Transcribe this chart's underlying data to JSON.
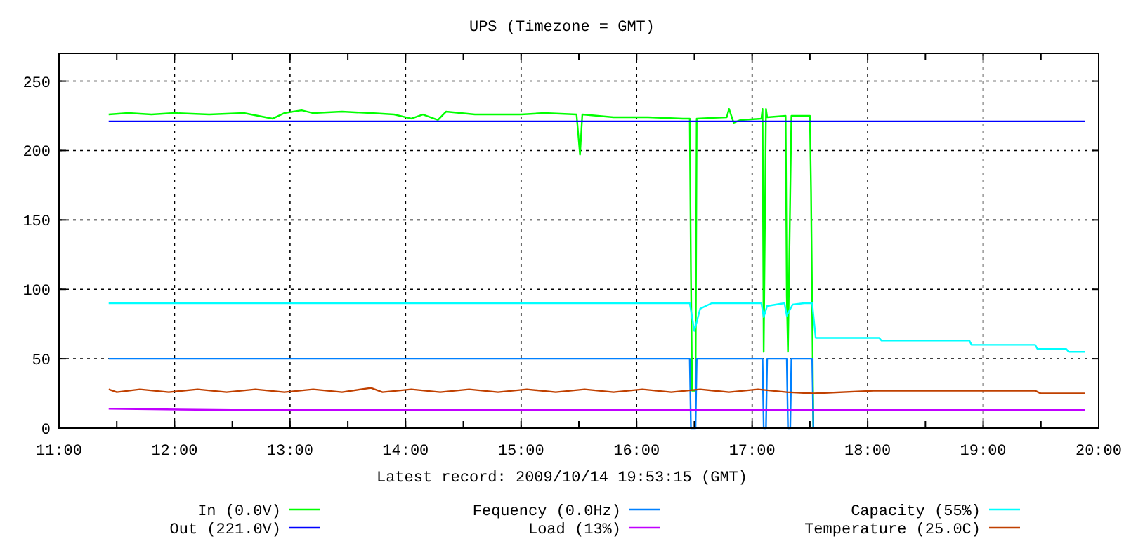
{
  "chart_data": {
    "type": "line",
    "title": "UPS (Timezone = GMT)",
    "annotations": [
      "Latest record: 2009/10/14 19:53:15 (GMT)"
    ],
    "xlim": [
      11,
      20
    ],
    "xticks": [
      {
        "value": 11,
        "label": "11:00"
      },
      {
        "value": 11.5,
        "label": null
      },
      {
        "value": 12,
        "label": "12:00"
      },
      {
        "value": 12.5,
        "label": null
      },
      {
        "value": 13,
        "label": "13:00"
      },
      {
        "value": 13.5,
        "label": null
      },
      {
        "value": 14,
        "label": "14:00"
      },
      {
        "value": 14.5,
        "label": null
      },
      {
        "value": 15,
        "label": "15:00"
      },
      {
        "value": 15.5,
        "label": null
      },
      {
        "value": 16,
        "label": "16:00"
      },
      {
        "value": 16.5,
        "label": null
      },
      {
        "value": 17,
        "label": "17:00"
      },
      {
        "value": 17.5,
        "label": null
      },
      {
        "value": 18,
        "label": "18:00"
      },
      {
        "value": 18.5,
        "label": null
      },
      {
        "value": 19,
        "label": "19:00"
      },
      {
        "value": 19.5,
        "label": null
      },
      {
        "value": 20,
        "label": "20:00"
      }
    ],
    "ylim": [
      0,
      270
    ],
    "yticks": [
      0,
      50,
      100,
      150,
      200,
      250
    ],
    "grid": true,
    "legend": "bottom",
    "marker": "none",
    "line_style": "solid",
    "series": [
      {
        "name": "In (0.0V)",
        "color": "#00ff00",
        "x": [
          11.43,
          11.6,
          11.8,
          12.0,
          12.3,
          12.6,
          12.85,
          12.95,
          13.1,
          13.2,
          13.45,
          13.7,
          13.9,
          14.05,
          14.15,
          14.28,
          14.35,
          14.6,
          15.0,
          15.2,
          15.48,
          15.51,
          15.53,
          15.8,
          16.1,
          16.4,
          16.46,
          16.47,
          16.48,
          16.51,
          16.52,
          16.78,
          16.8,
          16.84,
          16.9,
          17.08,
          17.09,
          17.1,
          17.12,
          17.13,
          17.29,
          17.3,
          17.31,
          17.33,
          17.34,
          17.5,
          17.51,
          17.53
        ],
        "values": [
          226,
          227,
          226,
          227,
          226,
          227,
          223,
          227,
          229,
          227,
          228,
          227,
          226,
          223,
          226,
          222,
          228,
          226,
          226,
          227,
          226,
          197,
          226,
          224,
          224,
          223,
          223,
          113,
          27,
          27,
          223,
          224,
          230,
          220,
          222,
          223,
          230,
          55,
          230,
          224,
          225,
          95,
          55,
          170,
          225,
          225,
          170,
          0
        ]
      },
      {
        "name": "Out (221.0V)",
        "color": "#0000ff",
        "x": [
          11.43,
          19.88
        ],
        "values": [
          221,
          221
        ]
      },
      {
        "name": "Fequency (0.0Hz)",
        "color": "#0080ff",
        "x": [
          11.43,
          16.46,
          16.47,
          16.51,
          16.52,
          17.09,
          17.1,
          17.12,
          17.13,
          17.3,
          17.31,
          17.33,
          17.34,
          17.52,
          17.53
        ],
        "values": [
          50,
          50,
          0,
          0,
          50,
          50,
          0,
          0,
          50,
          50,
          0,
          0,
          50,
          50,
          0
        ]
      },
      {
        "name": "Load (13%)",
        "color": "#c000ff",
        "x": [
          11.43,
          12.5,
          15,
          17.53,
          19.88
        ],
        "values": [
          14,
          13,
          13,
          13,
          13
        ]
      },
      {
        "name": "Capacity (55%)",
        "color": "#00ffff",
        "x": [
          11.43,
          16.46,
          16.47,
          16.5,
          16.55,
          16.65,
          17.08,
          17.1,
          17.13,
          17.28,
          17.3,
          17.35,
          17.45,
          17.52,
          17.55,
          18.1,
          18.12,
          18.88,
          18.9,
          19.45,
          19.47,
          19.72,
          19.74,
          19.88
        ],
        "values": [
          90,
          90,
          85,
          70,
          86,
          90,
          90,
          80,
          88,
          90,
          81,
          89,
          90,
          90,
          65,
          65,
          63,
          63,
          60,
          60,
          57,
          57,
          55,
          55
        ]
      },
      {
        "name": "Temperature (25.0C)",
        "color": "#c04000",
        "x": [
          11.43,
          11.5,
          11.7,
          11.95,
          12.2,
          12.45,
          12.7,
          12.95,
          13.2,
          13.45,
          13.7,
          13.8,
          14.05,
          14.3,
          14.55,
          14.8,
          15.05,
          15.3,
          15.55,
          15.8,
          16.05,
          16.3,
          16.55,
          16.8,
          17.05,
          17.3,
          17.53,
          18.05,
          19.45,
          19.5,
          19.88
        ],
        "values": [
          28,
          26,
          28,
          26,
          28,
          26,
          28,
          26,
          28,
          26,
          29,
          26,
          28,
          26,
          28,
          26,
          28,
          26,
          28,
          26,
          28,
          26,
          28,
          26,
          28,
          26,
          25,
          27,
          27,
          25,
          25
        ]
      }
    ]
  }
}
